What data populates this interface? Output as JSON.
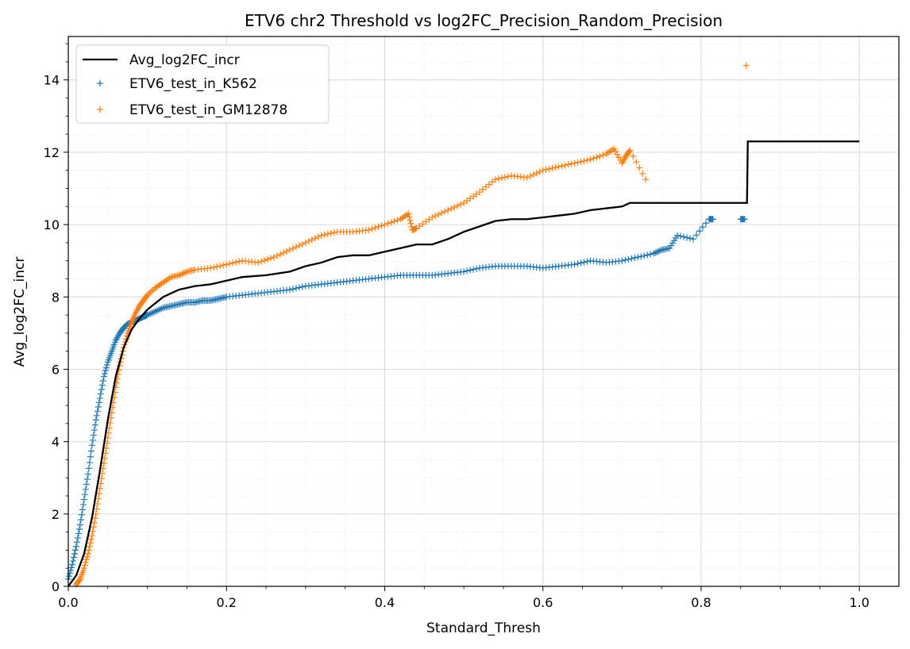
{
  "chart_data": {
    "type": "scatter",
    "title": "ETV6 chr2 Threshold vs log2FC_Precision_Random_Precision",
    "xlabel": "Standard_Thresh",
    "ylabel": "Avg_log2FC_incr",
    "xlim": [
      0.0,
      1.05
    ],
    "ylim": [
      0,
      15.2
    ],
    "xticks": [
      "0.0",
      "0.2",
      "0.4",
      "0.6",
      "0.8",
      "1.0"
    ],
    "yticks": [
      "0",
      "2",
      "4",
      "6",
      "8",
      "10",
      "12",
      "14"
    ],
    "grid": true,
    "legend_position": "top-left",
    "series": [
      {
        "name": "Avg_log2FC_incr",
        "kind": "line",
        "color": "#000000",
        "x": [
          0.0,
          0.01,
          0.02,
          0.03,
          0.04,
          0.05,
          0.06,
          0.07,
          0.08,
          0.09,
          0.1,
          0.12,
          0.14,
          0.16,
          0.18,
          0.2,
          0.22,
          0.25,
          0.28,
          0.3,
          0.32,
          0.34,
          0.36,
          0.38,
          0.4,
          0.42,
          0.44,
          0.46,
          0.48,
          0.5,
          0.52,
          0.54,
          0.56,
          0.58,
          0.6,
          0.62,
          0.64,
          0.66,
          0.68,
          0.7,
          0.71,
          0.75,
          0.8,
          0.858,
          0.859,
          0.9,
          0.95,
          1.0
        ],
        "y": [
          0.0,
          0.3,
          0.9,
          1.9,
          3.2,
          4.6,
          5.8,
          6.6,
          7.1,
          7.4,
          7.65,
          8.0,
          8.2,
          8.3,
          8.35,
          8.45,
          8.55,
          8.6,
          8.7,
          8.85,
          8.95,
          9.1,
          9.15,
          9.15,
          9.25,
          9.35,
          9.45,
          9.45,
          9.6,
          9.8,
          9.95,
          10.1,
          10.15,
          10.15,
          10.2,
          10.25,
          10.3,
          10.4,
          10.45,
          10.5,
          10.6,
          10.6,
          10.6,
          10.6,
          12.3,
          12.3,
          12.3,
          12.3
        ]
      },
      {
        "name": "ETV6_test_in_K562",
        "kind": "scatter",
        "marker": "+",
        "color": "#1f77b4",
        "x": [
          0.0,
          0.005,
          0.01,
          0.015,
          0.02,
          0.025,
          0.03,
          0.035,
          0.04,
          0.045,
          0.05,
          0.055,
          0.06,
          0.065,
          0.07,
          0.075,
          0.08,
          0.085,
          0.09,
          0.095,
          0.1,
          0.11,
          0.12,
          0.13,
          0.14,
          0.15,
          0.16,
          0.17,
          0.18,
          0.19,
          0.2,
          0.22,
          0.24,
          0.26,
          0.28,
          0.3,
          0.32,
          0.34,
          0.36,
          0.38,
          0.4,
          0.42,
          0.44,
          0.46,
          0.48,
          0.5,
          0.52,
          0.54,
          0.56,
          0.58,
          0.6,
          0.62,
          0.64,
          0.66,
          0.68,
          0.7,
          0.72,
          0.74,
          0.75,
          0.76,
          0.77,
          0.79,
          0.81,
          0.815,
          0.85,
          0.855
        ],
        "y": [
          0.2,
          0.6,
          1.1,
          1.7,
          2.4,
          3.1,
          3.9,
          4.6,
          5.2,
          5.8,
          6.2,
          6.5,
          6.8,
          7.0,
          7.15,
          7.25,
          7.3,
          7.35,
          7.4,
          7.45,
          7.5,
          7.6,
          7.7,
          7.75,
          7.8,
          7.85,
          7.85,
          7.9,
          7.9,
          7.95,
          8.0,
          8.05,
          8.1,
          8.15,
          8.2,
          8.3,
          8.35,
          8.4,
          8.45,
          8.5,
          8.55,
          8.6,
          8.6,
          8.6,
          8.65,
          8.7,
          8.8,
          8.85,
          8.85,
          8.85,
          8.8,
          8.85,
          8.9,
          9.0,
          8.95,
          9.0,
          9.1,
          9.2,
          9.3,
          9.35,
          9.7,
          9.6,
          10.15,
          10.15,
          10.15,
          10.15
        ]
      },
      {
        "name": "ETV6_test_in_GM12878",
        "kind": "scatter",
        "marker": "+",
        "color": "#ff7f0e",
        "x": [
          0.01,
          0.015,
          0.02,
          0.025,
          0.03,
          0.035,
          0.04,
          0.045,
          0.05,
          0.055,
          0.06,
          0.065,
          0.07,
          0.075,
          0.08,
          0.085,
          0.09,
          0.095,
          0.1,
          0.11,
          0.12,
          0.13,
          0.14,
          0.15,
          0.16,
          0.18,
          0.2,
          0.22,
          0.24,
          0.26,
          0.28,
          0.3,
          0.32,
          0.34,
          0.36,
          0.38,
          0.4,
          0.42,
          0.43,
          0.435,
          0.44,
          0.46,
          0.48,
          0.5,
          0.52,
          0.54,
          0.56,
          0.58,
          0.6,
          0.62,
          0.64,
          0.66,
          0.68,
          0.69,
          0.7,
          0.705,
          0.71,
          0.73,
          0.857
        ],
        "y": [
          0.05,
          0.2,
          0.5,
          0.9,
          1.4,
          2.0,
          2.7,
          3.4,
          4.1,
          4.8,
          5.5,
          6.1,
          6.6,
          7.0,
          7.3,
          7.55,
          7.75,
          7.9,
          8.05,
          8.25,
          8.4,
          8.55,
          8.6,
          8.7,
          8.75,
          8.8,
          8.9,
          9.0,
          8.95,
          9.1,
          9.3,
          9.5,
          9.7,
          9.8,
          9.8,
          9.85,
          10.0,
          10.15,
          10.3,
          9.85,
          9.9,
          10.2,
          10.4,
          10.6,
          10.9,
          11.25,
          11.35,
          11.3,
          11.5,
          11.6,
          11.7,
          11.8,
          11.95,
          12.1,
          11.7,
          11.9,
          12.05,
          11.25,
          14.4
        ]
      }
    ]
  }
}
